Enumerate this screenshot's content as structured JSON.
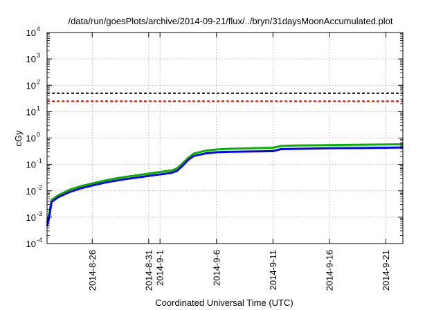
{
  "chart_data": {
    "type": "line",
    "title": "/data/run/goesPlots/archive/2014-09-21/flux/../bryn/31daysMoonAccumulated.plot",
    "xlabel": "Coordinated Universal Time (UTC)",
    "ylabel": "cGy",
    "y_scale": "log",
    "ylim": [
      0.0001,
      10000
    ],
    "xlim": [
      "2014-08-22",
      "2014-09-22.5"
    ],
    "grid": true,
    "x_ticks": [
      {
        "date": "2014-08-26",
        "label": "2014-8-26"
      },
      {
        "date": "2014-08-31",
        "label": "2014-8-31"
      },
      {
        "date": "2014-09-01",
        "label": "2014-9-1"
      },
      {
        "date": "2014-09-06",
        "label": "2014-9-6"
      },
      {
        "date": "2014-09-11",
        "label": "2014-9-11"
      },
      {
        "date": "2014-09-16",
        "label": "2014-9-16"
      },
      {
        "date": "2014-09-21",
        "label": "2014-9-21"
      }
    ],
    "y_ticks": [
      {
        "value": 0.0001,
        "base": "10",
        "exp": "-4"
      },
      {
        "value": 0.001,
        "base": "10",
        "exp": "-3"
      },
      {
        "value": 0.01,
        "base": "10",
        "exp": "-2"
      },
      {
        "value": 0.1,
        "base": "10",
        "exp": "-1"
      },
      {
        "value": 1,
        "base": "10",
        "exp": "0"
      },
      {
        "value": 10,
        "base": "10",
        "exp": "1"
      },
      {
        "value": 100,
        "base": "10",
        "exp": "2"
      },
      {
        "value": 1000,
        "base": "10",
        "exp": "3"
      },
      {
        "value": 10000,
        "base": "10",
        "exp": "4"
      }
    ],
    "reference_lines": [
      {
        "value": 50,
        "color": "#000000",
        "style": "dashed"
      },
      {
        "value": 25,
        "color": "#ff0000",
        "style": "dashed"
      }
    ],
    "series": [
      {
        "color": "#00b400",
        "points": [
          [
            "2014-08-22",
            0.0006
          ],
          [
            "2014-08-22.2",
            0.0014
          ],
          [
            "2014-08-22.4",
            0.0045
          ],
          [
            "2014-08-23",
            0.0068
          ],
          [
            "2014-08-24",
            0.011
          ],
          [
            "2014-08-25",
            0.015
          ],
          [
            "2014-08-26",
            0.019
          ],
          [
            "2014-08-27",
            0.024
          ],
          [
            "2014-08-28",
            0.029
          ],
          [
            "2014-08-29",
            0.034
          ],
          [
            "2014-08-30",
            0.039
          ],
          [
            "2014-08-31",
            0.045
          ],
          [
            "2014-09-01",
            0.052
          ],
          [
            "2014-09-02",
            0.059
          ],
          [
            "2014-09-02.5",
            0.07
          ],
          [
            "2014-09-03",
            0.11
          ],
          [
            "2014-09-03.5",
            0.18
          ],
          [
            "2014-09-04",
            0.26
          ],
          [
            "2014-09-05",
            0.33
          ],
          [
            "2014-09-06",
            0.37
          ],
          [
            "2014-09-07",
            0.39
          ],
          [
            "2014-09-09",
            0.41
          ],
          [
            "2014-09-11",
            0.43
          ],
          [
            "2014-09-11.7",
            0.5
          ],
          [
            "2014-09-13",
            0.52
          ],
          [
            "2014-09-16",
            0.54
          ],
          [
            "2014-09-19",
            0.56
          ],
          [
            "2014-09-22.5",
            0.58
          ]
        ]
      },
      {
        "color": "#0000ff",
        "points": [
          [
            "2014-08-22",
            0.00045
          ],
          [
            "2014-08-22.2",
            0.0011
          ],
          [
            "2014-08-22.4",
            0.0038
          ],
          [
            "2014-08-23",
            0.0058
          ],
          [
            "2014-08-24",
            0.009
          ],
          [
            "2014-08-25",
            0.0125
          ],
          [
            "2014-08-26",
            0.016
          ],
          [
            "2014-08-27",
            0.02
          ],
          [
            "2014-08-28",
            0.024
          ],
          [
            "2014-08-29",
            0.028
          ],
          [
            "2014-08-30",
            0.032
          ],
          [
            "2014-08-31",
            0.037
          ],
          [
            "2014-09-01",
            0.042
          ],
          [
            "2014-09-02",
            0.048
          ],
          [
            "2014-09-02.5",
            0.057
          ],
          [
            "2014-09-03",
            0.09
          ],
          [
            "2014-09-03.5",
            0.15
          ],
          [
            "2014-09-04",
            0.21
          ],
          [
            "2014-09-05",
            0.26
          ],
          [
            "2014-09-06",
            0.29
          ],
          [
            "2014-09-07",
            0.3
          ],
          [
            "2014-09-09",
            0.31
          ],
          [
            "2014-09-11",
            0.32
          ],
          [
            "2014-09-11.7",
            0.38
          ],
          [
            "2014-09-13",
            0.39
          ],
          [
            "2014-09-16",
            0.41
          ],
          [
            "2014-09-19",
            0.42
          ],
          [
            "2014-09-22.5",
            0.44
          ]
        ]
      }
    ]
  }
}
